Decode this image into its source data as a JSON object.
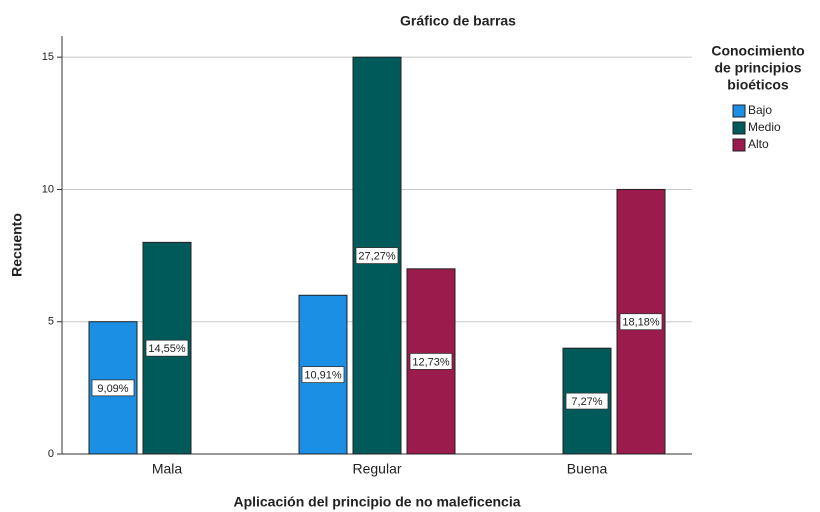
{
  "chart_data": {
    "type": "bar",
    "title": "Gráfico de barras",
    "x_label": "Aplicación del principio de no maleficencia",
    "y_label": "Recuento",
    "legend_title": [
      "Conocimiento",
      "de principios",
      "bioéticos"
    ],
    "categories": [
      "Mala",
      "Regular",
      "Buena"
    ],
    "series": [
      {
        "name": "Bajo",
        "color": "#1a8fe3",
        "values": [
          5,
          6,
          null
        ],
        "percent_labels": [
          "9,09%",
          "10,91%",
          null
        ]
      },
      {
        "name": "Medio",
        "color": "#005a5a",
        "values": [
          8,
          15,
          4
        ],
        "percent_labels": [
          "14,55%",
          "27,27%",
          "7,27%"
        ]
      },
      {
        "name": "Alto",
        "color": "#9b1b4d",
        "values": [
          null,
          7,
          10
        ],
        "percent_labels": [
          null,
          "12,73%",
          "18,18%"
        ]
      }
    ],
    "ylim": [
      0,
      15.8
    ],
    "yticks": [
      0,
      5,
      10,
      15
    ],
    "grid": true,
    "legend": "right"
  }
}
